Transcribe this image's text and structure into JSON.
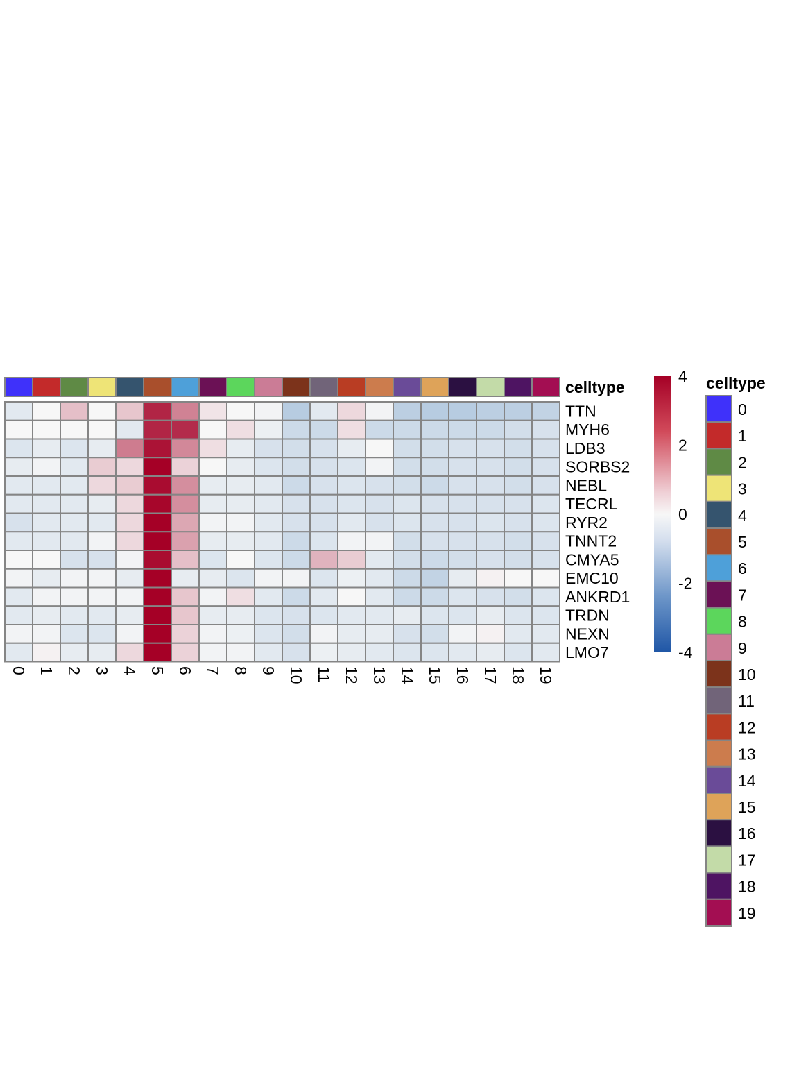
{
  "chart_data": {
    "type": "heatmap",
    "annotation_label": "celltype",
    "legend_title": "celltype",
    "columns": [
      "0",
      "1",
      "2",
      "3",
      "4",
      "5",
      "6",
      "7",
      "8",
      "9",
      "10",
      "11",
      "12",
      "13",
      "14",
      "15",
      "16",
      "17",
      "18",
      "19"
    ],
    "rows": [
      "TTN",
      "MYH6",
      "LDB3",
      "SORBS2",
      "NEBL",
      "TECRL",
      "RYR2",
      "TNNT2",
      "CMYA5",
      "EMC10",
      "ANKRD1",
      "TRDN",
      "NEXN",
      "LMO7"
    ],
    "celltype_colors": [
      "#3f31fa",
      "#c32a2a",
      "#5f8a45",
      "#eee477",
      "#35546e",
      "#a94f2c",
      "#4ea0d9",
      "#6b1155",
      "#5cd65c",
      "#cb7c96",
      "#7c331b",
      "#716479",
      "#b93d23",
      "#cc7c4d",
      "#6a4b98",
      "#dea359",
      "#2b1041",
      "#c3dba8",
      "#4e1462",
      "#a30e52"
    ],
    "values": [
      [
        -0.4,
        0.0,
        0.9,
        0.0,
        0.8,
        3.4,
        1.9,
        0.3,
        0.0,
        -0.1,
        -1.2,
        -0.4,
        0.5,
        -0.1,
        -1.1,
        -1.2,
        -1.2,
        -1.1,
        -1.1,
        -1.0
      ],
      [
        0.0,
        0.0,
        0.0,
        0.0,
        -0.4,
        3.4,
        3.3,
        0.0,
        0.4,
        -0.2,
        -0.8,
        -0.8,
        0.4,
        -0.8,
        -0.8,
        -0.8,
        -0.8,
        -0.8,
        -0.7,
        -0.6
      ],
      [
        -0.5,
        -0.3,
        -0.5,
        -0.3,
        2.0,
        3.7,
        1.8,
        0.4,
        -0.3,
        -0.6,
        -0.7,
        -0.6,
        -0.3,
        0.0,
        -0.7,
        -0.7,
        -0.6,
        -0.6,
        -0.7,
        -0.6
      ],
      [
        -0.3,
        -0.1,
        -0.4,
        0.7,
        0.5,
        4.0,
        0.6,
        0.0,
        -0.3,
        -0.5,
        -0.7,
        -0.6,
        -0.5,
        -0.1,
        -0.7,
        -0.7,
        -0.6,
        -0.6,
        -0.7,
        -0.6
      ],
      [
        -0.4,
        -0.4,
        -0.4,
        0.5,
        0.7,
        3.8,
        1.7,
        -0.3,
        -0.3,
        -0.4,
        -0.8,
        -0.6,
        -0.5,
        -0.6,
        -0.7,
        -0.8,
        -0.6,
        -0.6,
        -0.7,
        -0.6
      ],
      [
        -0.4,
        -0.4,
        -0.4,
        -0.3,
        0.5,
        3.9,
        1.7,
        -0.3,
        -0.3,
        -0.4,
        -0.6,
        -0.6,
        -0.5,
        -0.6,
        -0.5,
        -0.6,
        -0.6,
        -0.6,
        -0.6,
        -0.5
      ],
      [
        -0.6,
        -0.4,
        -0.4,
        -0.4,
        0.5,
        4.0,
        1.3,
        -0.1,
        -0.1,
        -0.4,
        -0.6,
        -0.6,
        -0.4,
        -0.6,
        -0.5,
        -0.6,
        -0.6,
        -0.5,
        -0.6,
        -0.5
      ],
      [
        -0.4,
        -0.4,
        -0.4,
        -0.1,
        0.5,
        4.0,
        1.4,
        -0.3,
        -0.3,
        -0.4,
        -0.8,
        -0.5,
        -0.1,
        -0.1,
        -0.7,
        -0.6,
        -0.6,
        -0.6,
        -0.7,
        -0.6
      ],
      [
        0.0,
        0.0,
        -0.6,
        -0.6,
        -0.1,
        3.8,
        0.9,
        -0.5,
        0.0,
        -0.5,
        -0.8,
        1.1,
        0.7,
        -0.4,
        -0.7,
        -0.8,
        -0.7,
        -0.6,
        -0.7,
        -0.6
      ],
      [
        -0.1,
        -0.3,
        -0.1,
        -0.1,
        -0.3,
        4.0,
        -0.3,
        -0.3,
        -0.5,
        -0.1,
        -0.1,
        -0.5,
        -0.2,
        -0.4,
        -0.8,
        -1.0,
        -0.3,
        0.1,
        0.0,
        0.0
      ],
      [
        -0.4,
        -0.1,
        -0.1,
        -0.1,
        -0.1,
        4.0,
        0.8,
        -0.1,
        0.4,
        -0.4,
        -0.8,
        -0.4,
        0.0,
        -0.4,
        -0.8,
        -0.8,
        -0.5,
        -0.6,
        -0.7,
        -0.5
      ],
      [
        -0.4,
        -0.3,
        -0.4,
        -0.4,
        -0.3,
        4.0,
        0.8,
        -0.3,
        -0.3,
        -0.5,
        -0.6,
        -0.5,
        -0.4,
        -0.4,
        -0.3,
        -0.5,
        -0.5,
        -0.3,
        -0.5,
        -0.5
      ],
      [
        -0.1,
        -0.1,
        -0.5,
        -0.5,
        -0.1,
        4.0,
        0.6,
        -0.1,
        -0.2,
        -0.5,
        -0.7,
        -0.1,
        -0.3,
        -0.3,
        -0.6,
        -0.7,
        -0.1,
        0.1,
        -0.4,
        -0.4
      ],
      [
        -0.4,
        0.1,
        -0.3,
        -0.3,
        0.5,
        4.0,
        0.6,
        -0.1,
        -0.1,
        -0.4,
        -0.6,
        -0.2,
        -0.3,
        -0.4,
        -0.5,
        -0.5,
        -0.4,
        -0.3,
        -0.5,
        -0.4
      ]
    ],
    "scale": {
      "min": -4,
      "max": 4,
      "ticks": [
        "4",
        "2",
        "0",
        "-2",
        "-4"
      ],
      "low_color": "#2166ac",
      "mid_color": "#f7f7f7",
      "high_color": "#a50026"
    }
  }
}
